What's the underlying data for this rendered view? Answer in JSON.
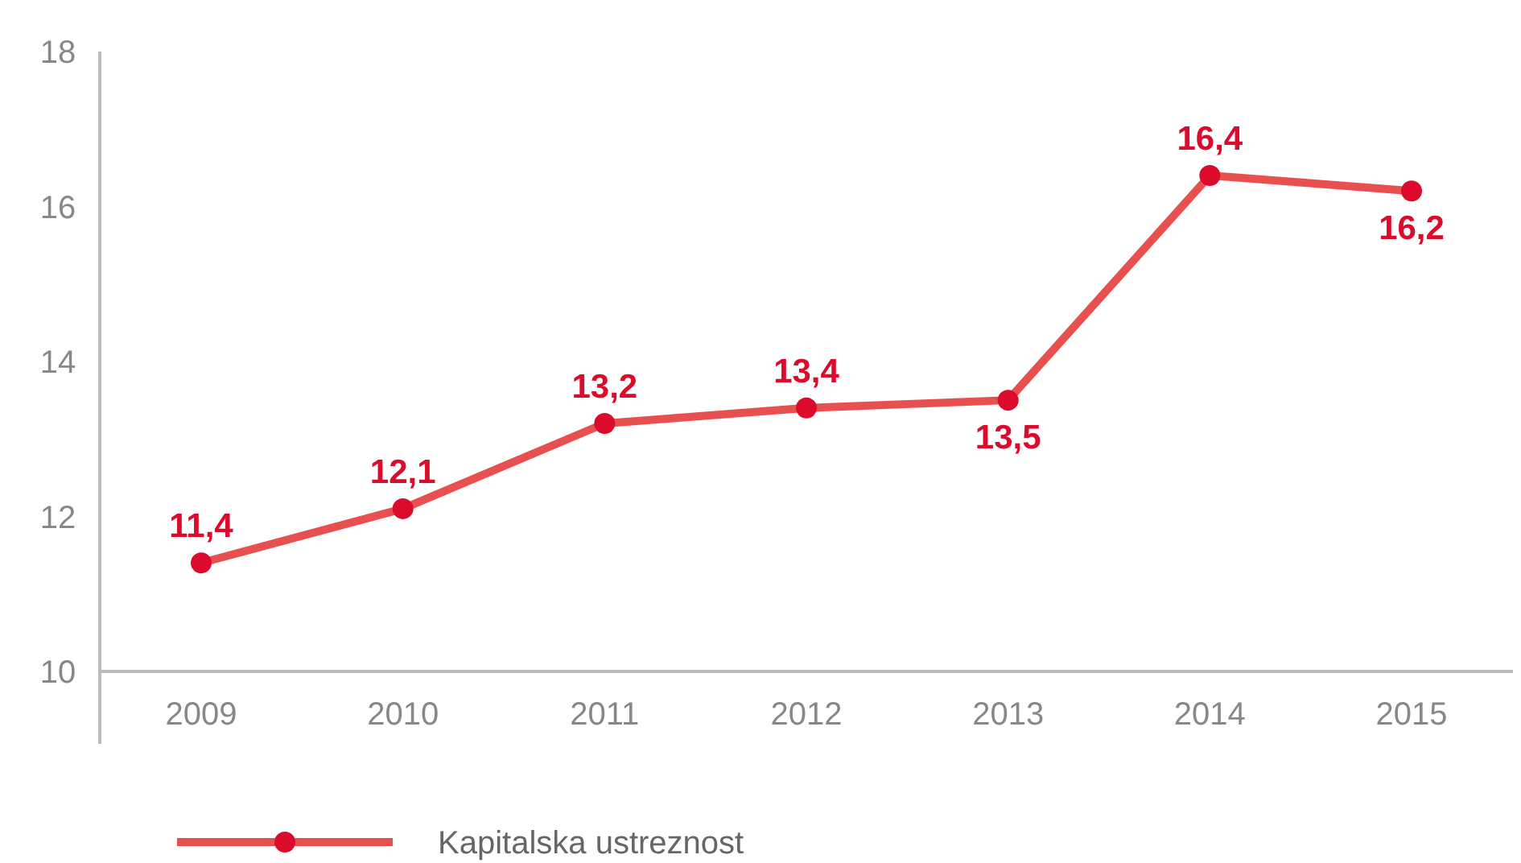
{
  "chart_data": {
    "type": "line",
    "categories": [
      "2009",
      "2010",
      "2011",
      "2012",
      "2013",
      "2014",
      "2015"
    ],
    "series": [
      {
        "name": "Kapitalska ustreznost",
        "color": "#e8504f",
        "values": [
          11.4,
          12.1,
          13.2,
          13.4,
          13.5,
          16.4,
          16.2
        ],
        "value_labels": [
          "11,4",
          "12,1",
          "13,2",
          "13,4",
          "13,5",
          "16,4",
          "16,2"
        ]
      }
    ],
    "ylim": [
      10,
      18
    ],
    "yticks": [
      10,
      12,
      14,
      16,
      18
    ],
    "grid": false,
    "legend": "bottom left",
    "marker": "circle",
    "line_style": "solid"
  }
}
